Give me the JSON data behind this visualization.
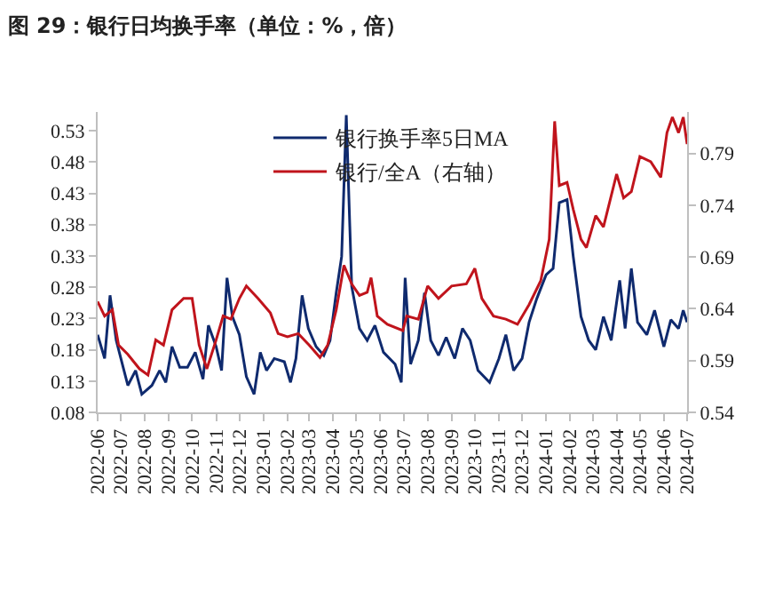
{
  "chart_data": {
    "type": "line",
    "title": "图 29：银行日均换手率（单位：%，倍）",
    "series": [
      {
        "name": "银行换手率5日MA",
        "color": "#0f2a6e",
        "x": [
          "2022-06-01",
          "2022-06-10",
          "2022-06-17",
          "2022-06-25",
          "2022-07-05",
          "2022-07-10",
          "2022-07-20",
          "2022-07-28",
          "2022-08-10",
          "2022-08-20",
          "2022-08-28",
          "2022-09-05",
          "2022-09-15",
          "2022-09-25",
          "2022-10-05",
          "2022-10-15",
          "2022-10-22",
          "2022-11-01",
          "2022-11-08",
          "2022-11-15",
          "2022-11-22",
          "2022-12-01",
          "2022-12-10",
          "2022-12-20",
          "2022-12-28",
          "2023-01-05",
          "2023-01-15",
          "2023-01-28",
          "2023-02-05",
          "2023-02-12",
          "2023-02-20",
          "2023-02-28",
          "2023-03-10",
          "2023-03-20",
          "2023-03-28",
          "2023-04-05",
          "2023-04-12",
          "2023-04-18",
          "2023-04-25",
          "2023-05-05",
          "2023-05-15",
          "2023-05-25",
          "2023-06-05",
          "2023-06-20",
          "2023-06-28",
          "2023-07-03",
          "2023-07-10",
          "2023-07-20",
          "2023-07-28",
          "2023-08-05",
          "2023-08-15",
          "2023-08-25",
          "2023-09-05",
          "2023-09-15",
          "2023-09-25",
          "2023-10-05",
          "2023-10-20",
          "2023-11-01",
          "2023-11-10",
          "2023-11-20",
          "2023-12-01",
          "2023-12-10",
          "2023-12-20",
          "2024-01-01",
          "2024-01-10",
          "2024-01-18",
          "2024-01-28",
          "2024-02-05",
          "2024-02-15",
          "2024-02-25",
          "2024-03-05",
          "2024-03-15",
          "2024-03-25",
          "2024-04-05",
          "2024-04-12",
          "2024-04-20",
          "2024-04-28",
          "2024-05-10",
          "2024-05-20",
          "2024-06-01",
          "2024-06-10",
          "2024-06-20",
          "2024-06-26",
          "2024-07-01"
        ],
        "values": [
          0.204,
          0.166,
          0.267,
          0.195,
          0.147,
          0.123,
          0.147,
          0.109,
          0.123,
          0.147,
          0.128,
          0.185,
          0.152,
          0.152,
          0.176,
          0.133,
          0.219,
          0.185,
          0.147,
          0.295,
          0.233,
          0.204,
          0.137,
          0.109,
          0.176,
          0.147,
          0.166,
          0.161,
          0.128,
          0.166,
          0.267,
          0.214,
          0.185,
          0.171,
          0.195,
          0.271,
          0.329,
          0.555,
          0.281,
          0.214,
          0.195,
          0.219,
          0.176,
          0.157,
          0.128,
          0.295,
          0.157,
          0.195,
          0.271,
          0.195,
          0.171,
          0.2,
          0.166,
          0.214,
          0.195,
          0.147,
          0.128,
          0.166,
          0.204,
          0.147,
          0.166,
          0.224,
          0.262,
          0.3,
          0.31,
          0.415,
          0.42,
          0.329,
          0.233,
          0.195,
          0.18,
          0.233,
          0.195,
          0.291,
          0.214,
          0.31,
          0.224,
          0.204,
          0.243,
          0.185,
          0.228,
          0.214,
          0.243,
          0.224
        ]
      },
      {
        "name": "银行/全A（右轴）",
        "color": "#c0141c",
        "axis": "y2",
        "x": [
          "2022-06-01",
          "2022-06-10",
          "2022-06-20",
          "2022-06-28",
          "2022-07-10",
          "2022-07-25",
          "2022-08-05",
          "2022-08-15",
          "2022-08-25",
          "2022-09-05",
          "2022-09-20",
          "2022-10-01",
          "2022-10-10",
          "2022-10-20",
          "2022-11-01",
          "2022-11-10",
          "2022-11-20",
          "2022-12-01",
          "2022-12-10",
          "2022-12-25",
          "2023-01-10",
          "2023-01-20",
          "2023-02-01",
          "2023-02-15",
          "2023-03-01",
          "2023-03-15",
          "2023-03-25",
          "2023-04-05",
          "2023-04-15",
          "2023-04-25",
          "2023-05-05",
          "2023-05-15",
          "2023-05-20",
          "2023-05-28",
          "2023-06-10",
          "2023-06-30",
          "2023-07-05",
          "2023-07-20",
          "2023-08-01",
          "2023-08-15",
          "2023-09-01",
          "2023-09-20",
          "2023-10-01",
          "2023-10-10",
          "2023-10-25",
          "2023-11-10",
          "2023-11-25",
          "2023-12-10",
          "2023-12-25",
          "2024-01-05",
          "2024-01-12",
          "2024-01-18",
          "2024-01-28",
          "2024-02-05",
          "2024-02-15",
          "2024-02-22",
          "2024-03-05",
          "2024-03-15",
          "2024-04-01",
          "2024-04-10",
          "2024-04-20",
          "2024-05-01",
          "2024-05-15",
          "2024-05-28",
          "2024-06-05",
          "2024-06-12",
          "2024-06-20",
          "2024-06-26",
          "2024-07-01"
        ],
        "values": [
          0.647,
          0.633,
          0.639,
          0.605,
          0.596,
          0.582,
          0.576,
          0.61,
          0.605,
          0.639,
          0.65,
          0.65,
          0.605,
          0.582,
          0.61,
          0.633,
          0.63,
          0.65,
          0.662,
          0.65,
          0.636,
          0.616,
          0.613,
          0.616,
          0.605,
          0.593,
          0.605,
          0.639,
          0.682,
          0.664,
          0.653,
          0.656,
          0.67,
          0.633,
          0.625,
          0.619,
          0.633,
          0.63,
          0.662,
          0.65,
          0.662,
          0.664,
          0.679,
          0.65,
          0.633,
          0.63,
          0.625,
          0.644,
          0.667,
          0.707,
          0.821,
          0.759,
          0.762,
          0.736,
          0.707,
          0.699,
          0.73,
          0.719,
          0.77,
          0.747,
          0.753,
          0.787,
          0.782,
          0.767,
          0.81,
          0.825,
          0.81,
          0.825,
          0.799
        ]
      }
    ],
    "xlim": [
      "2022-06",
      "2024-07"
    ],
    "xticks": [
      "2022-06",
      "2022-07",
      "2022-08",
      "2022-09",
      "2022-10",
      "2022-11",
      "2022-12",
      "2023-01",
      "2023-02",
      "2023-03",
      "2023-04",
      "2023-05",
      "2023-06",
      "2023-07",
      "2023-08",
      "2023-09",
      "2023-10",
      "2023-11",
      "2023-12",
      "2024-01",
      "2024-02",
      "2024-03",
      "2024-04",
      "2024-05",
      "2024-06",
      "2024-07"
    ],
    "ylim": [
      0.08,
      0.56
    ],
    "yticks": [
      0.08,
      0.13,
      0.18,
      0.23,
      0.28,
      0.33,
      0.38,
      0.43,
      0.48,
      0.53
    ],
    "y2lim": [
      0.54,
      0.83
    ],
    "y2ticks": [
      0.54,
      0.59,
      0.64,
      0.69,
      0.74,
      0.79
    ],
    "grid": false,
    "legend": "top",
    "line_style": "solid",
    "marker": "none"
  }
}
